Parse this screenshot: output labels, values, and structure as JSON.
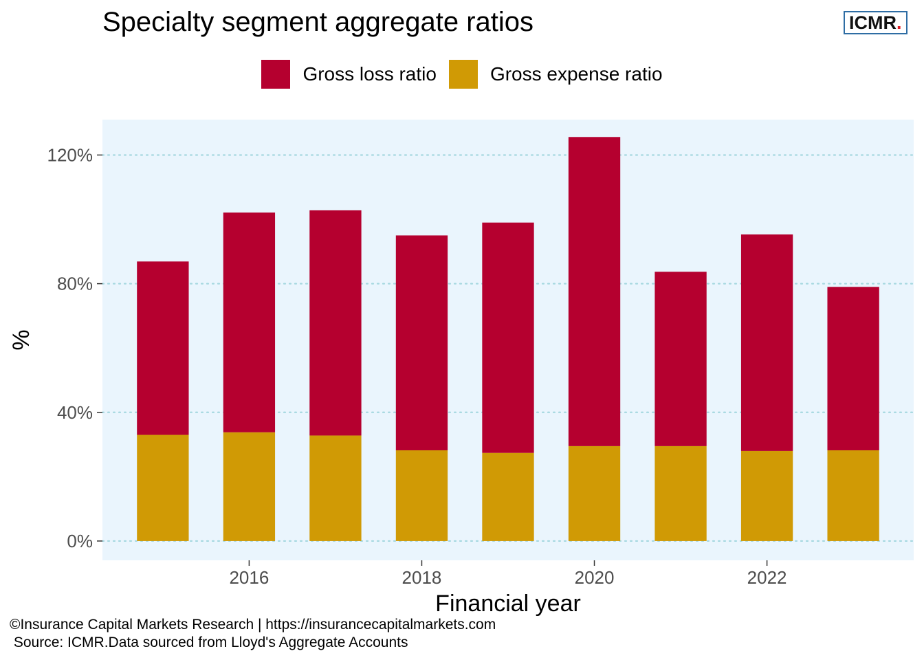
{
  "title": "Specialty segment aggregate ratios",
  "logo": {
    "text": "ICMR",
    "dot": "."
  },
  "legend": [
    {
      "label": "Gross loss ratio",
      "color": "#b5002f"
    },
    {
      "label": "Gross expense ratio",
      "color": "#d09a05"
    }
  ],
  "footer": {
    "line1": "©Insurance Capital Markets Research | https://insurancecapitalmarkets.com",
    "line2": " Source: ICMR.Data sourced from Lloyd's Aggregate Accounts"
  },
  "chart_data": {
    "type": "bar",
    "stacked": true,
    "title": "Specialty segment aggregate ratios",
    "xlabel": "Financial year",
    "ylabel": "%",
    "categories": [
      2015,
      2016,
      2017,
      2018,
      2019,
      2020,
      2021,
      2022,
      2023
    ],
    "series": [
      {
        "name": "Gross expense ratio",
        "color": "#d09a05",
        "values": [
          33.0,
          33.8,
          32.8,
          28.2,
          27.4,
          29.5,
          29.5,
          28.0,
          28.2
        ]
      },
      {
        "name": "Gross loss ratio",
        "color": "#b5002f",
        "values": [
          53.9,
          68.3,
          70.0,
          66.8,
          71.6,
          96.1,
          54.2,
          67.3,
          50.8
        ]
      }
    ],
    "ylim": [
      -6,
      131
    ],
    "yticks": [
      0,
      40,
      80,
      120
    ],
    "ytick_labels": [
      "0%",
      "40%",
      "80%",
      "120%"
    ],
    "xlim": [
      2014.3,
      2023.7
    ],
    "xticks": [
      2016,
      2018,
      2020,
      2022
    ],
    "xtick_labels": [
      "2016",
      "2018",
      "2020",
      "2022"
    ],
    "grid": "horizontal dotted",
    "legend_position": "top",
    "panel_background": "#eaf5fd",
    "grid_color": "#a6d8e0"
  }
}
